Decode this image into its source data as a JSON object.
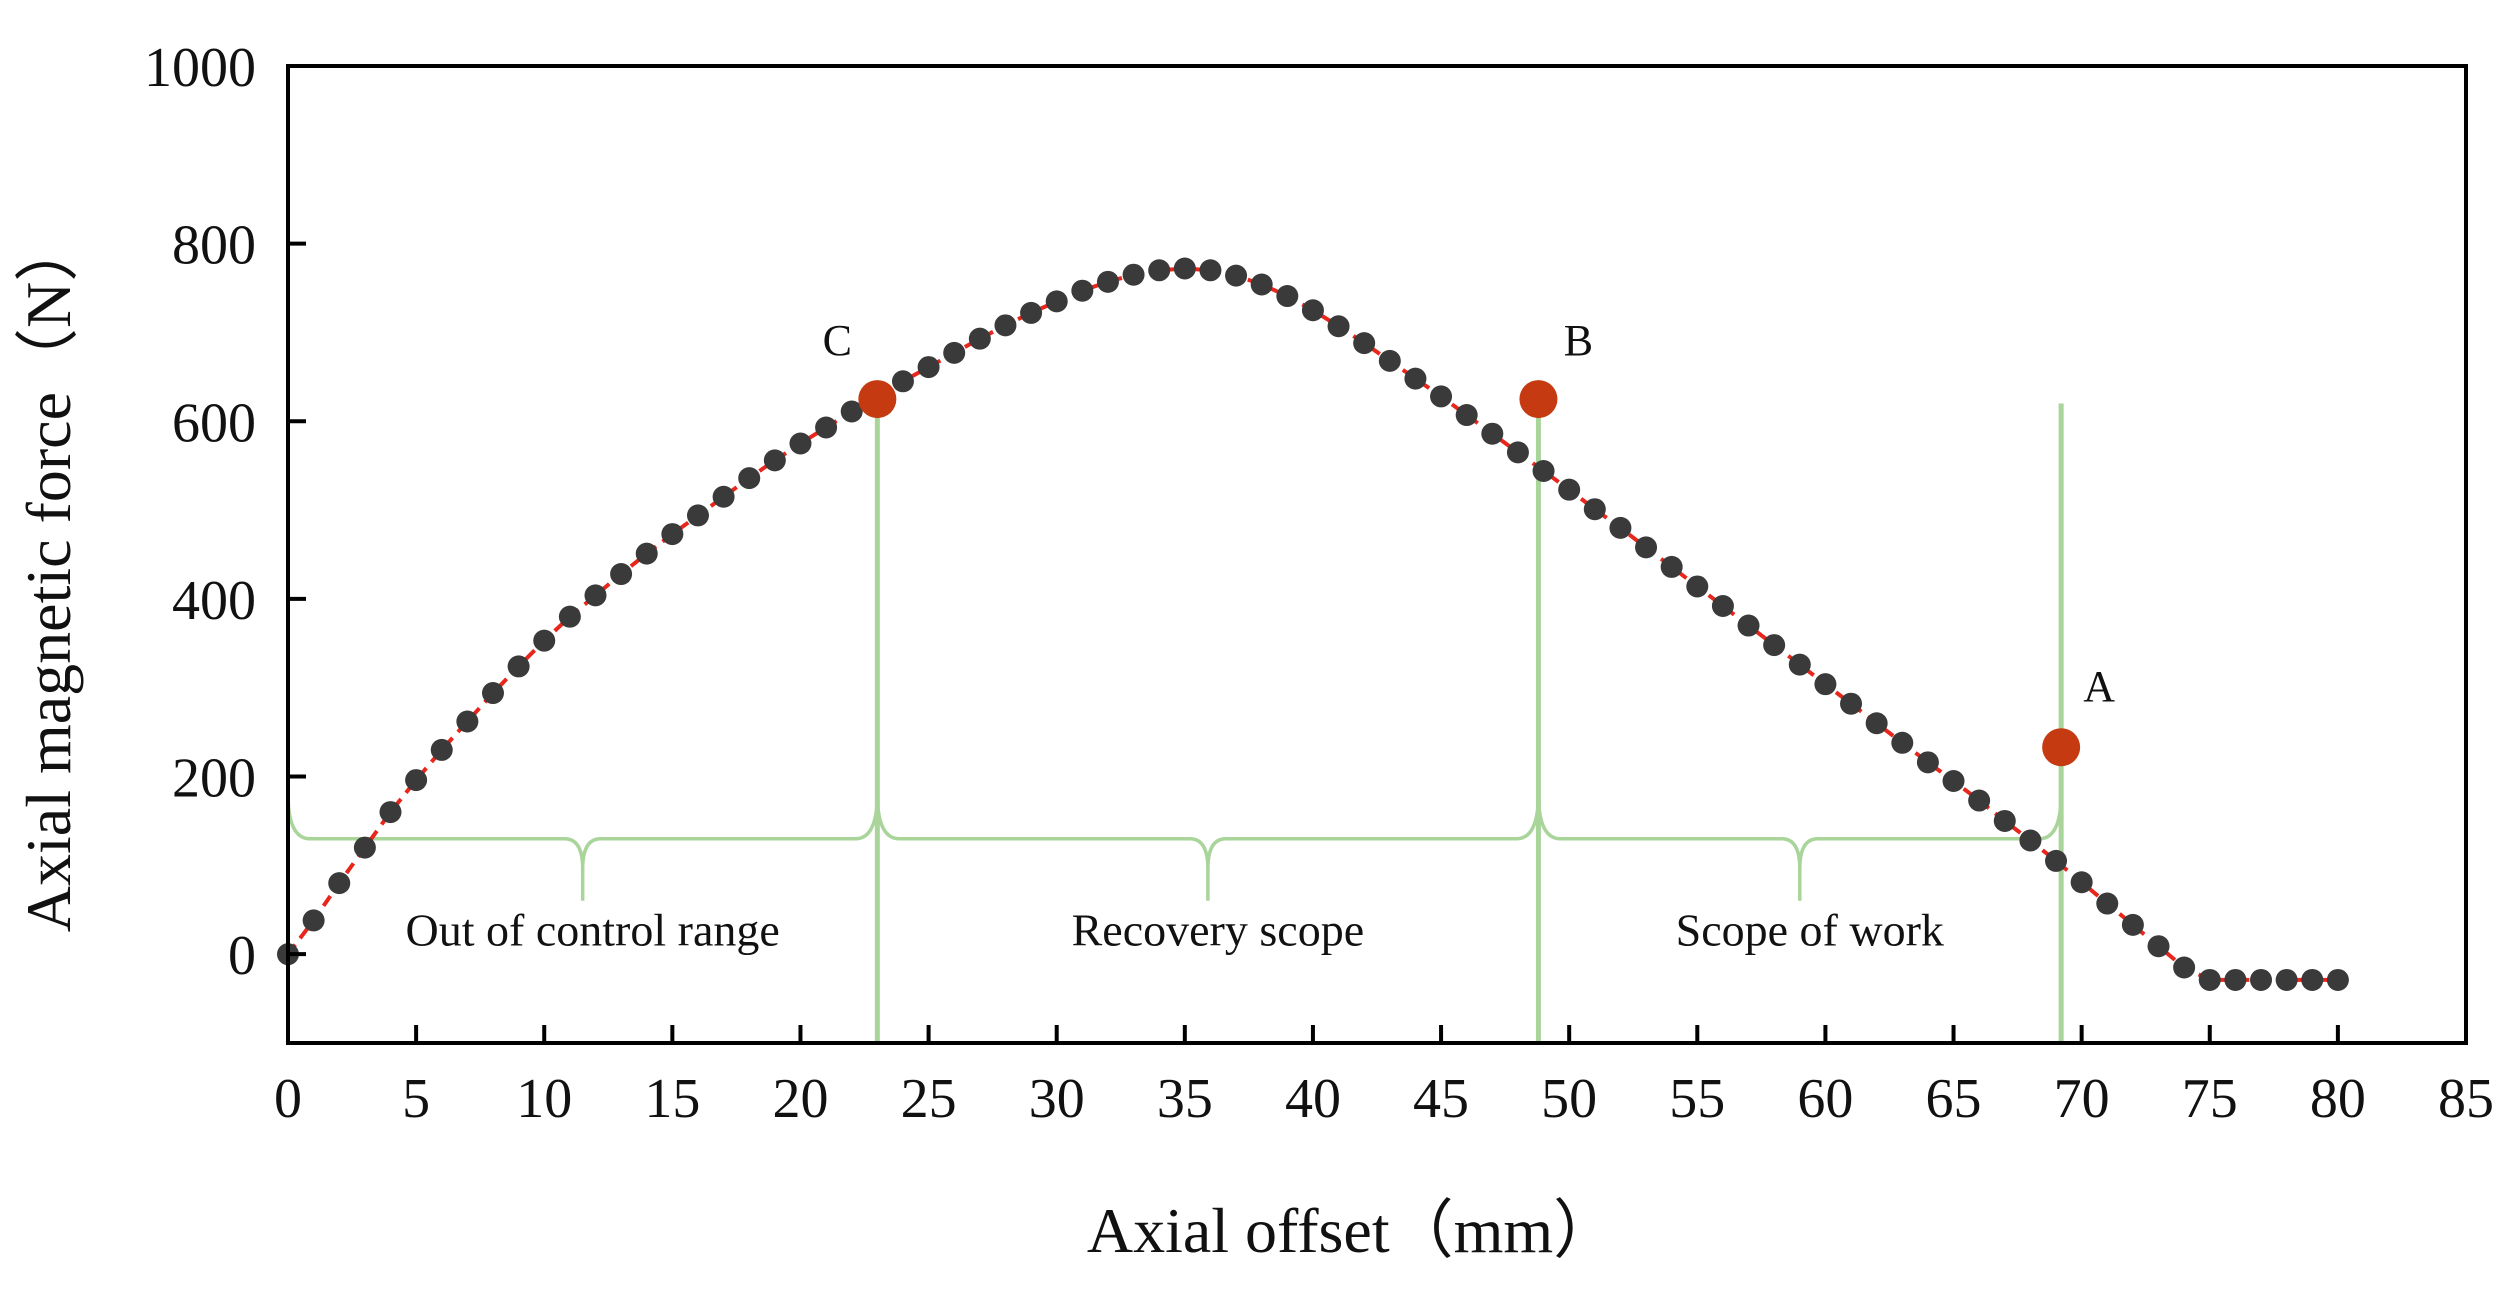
{
  "chart_data": {
    "type": "scatter",
    "title": "",
    "xlabel": "Axial offset（mm）",
    "ylabel": "Axial magnetic force（N）",
    "xlim": [
      0,
      85
    ],
    "ylim": [
      -100,
      1000
    ],
    "x_ticks": [
      0,
      5,
      10,
      15,
      20,
      25,
      30,
      35,
      40,
      45,
      50,
      55,
      60,
      65,
      70,
      75,
      80,
      85
    ],
    "y_ticks": [
      0,
      200,
      400,
      600,
      800,
      1000
    ],
    "grid": false,
    "series": [
      {
        "name": "Axial magnetic force",
        "marker": "circle",
        "marker_color": "#3a3a3a",
        "line_style": "dashed",
        "line_color": "#e8261c",
        "x": [
          0,
          1,
          2,
          3,
          4,
          5,
          6,
          7,
          8,
          9,
          10,
          11,
          12,
          13,
          14,
          15,
          16,
          17,
          18,
          19,
          20,
          21,
          22,
          23,
          24,
          25,
          26,
          27,
          28,
          29,
          30,
          31,
          32,
          33,
          34,
          35,
          36,
          37,
          38,
          39,
          40,
          41,
          42,
          43,
          44,
          45,
          46,
          47,
          48,
          49,
          50,
          51,
          52,
          53,
          54,
          55,
          56,
          57,
          58,
          59,
          60,
          61,
          62,
          63,
          64,
          65,
          66,
          67,
          68,
          69,
          70,
          71,
          72,
          73,
          74,
          75,
          76,
          77,
          78,
          79,
          80
        ],
        "y": [
          0,
          38,
          80,
          120,
          160,
          196,
          230,
          262,
          294,
          324,
          353,
          380,
          404,
          428,
          451,
          473,
          494,
          515,
          536,
          556,
          575,
          593,
          611,
          628,
          645,
          661,
          677,
          693,
          708,
          722,
          735,
          747,
          757,
          765,
          770,
          772,
          770,
          764,
          754,
          741,
          725,
          707,
          688,
          668,
          648,
          628,
          607,
          586,
          565,
          544,
          523,
          501,
          480,
          458,
          436,
          414,
          392,
          370,
          348,
          326,
          304,
          282,
          260,
          238,
          216,
          195,
          173,
          150,
          128,
          105,
          81,
          57,
          33,
          9,
          -15,
          -29,
          -29,
          -29,
          -29,
          -29,
          -29
        ]
      }
    ],
    "highlight_points": [
      {
        "label": "C",
        "x": 23,
        "y": 625,
        "color": "#c53a10"
      },
      {
        "label": "B",
        "x": 48.8,
        "y": 625,
        "color": "#c53a10"
      },
      {
        "label": "A",
        "x": 69.2,
        "y": 233,
        "color": "#c53a10"
      }
    ],
    "vertical_lines": [
      {
        "x": 23,
        "color": "#a9d49a"
      },
      {
        "x": 48.8,
        "color": "#a9d49a"
      },
      {
        "x": 69.2,
        "color": "#a9d49a"
      }
    ],
    "brace_y": 130,
    "regions": [
      {
        "label": "Out of control range",
        "x_start": 0,
        "x_end": 23
      },
      {
        "label": "Recovery scope",
        "x_start": 23,
        "x_end": 48.8
      },
      {
        "label": "Scope of work",
        "x_start": 48.8,
        "x_end": 69.2
      }
    ]
  }
}
